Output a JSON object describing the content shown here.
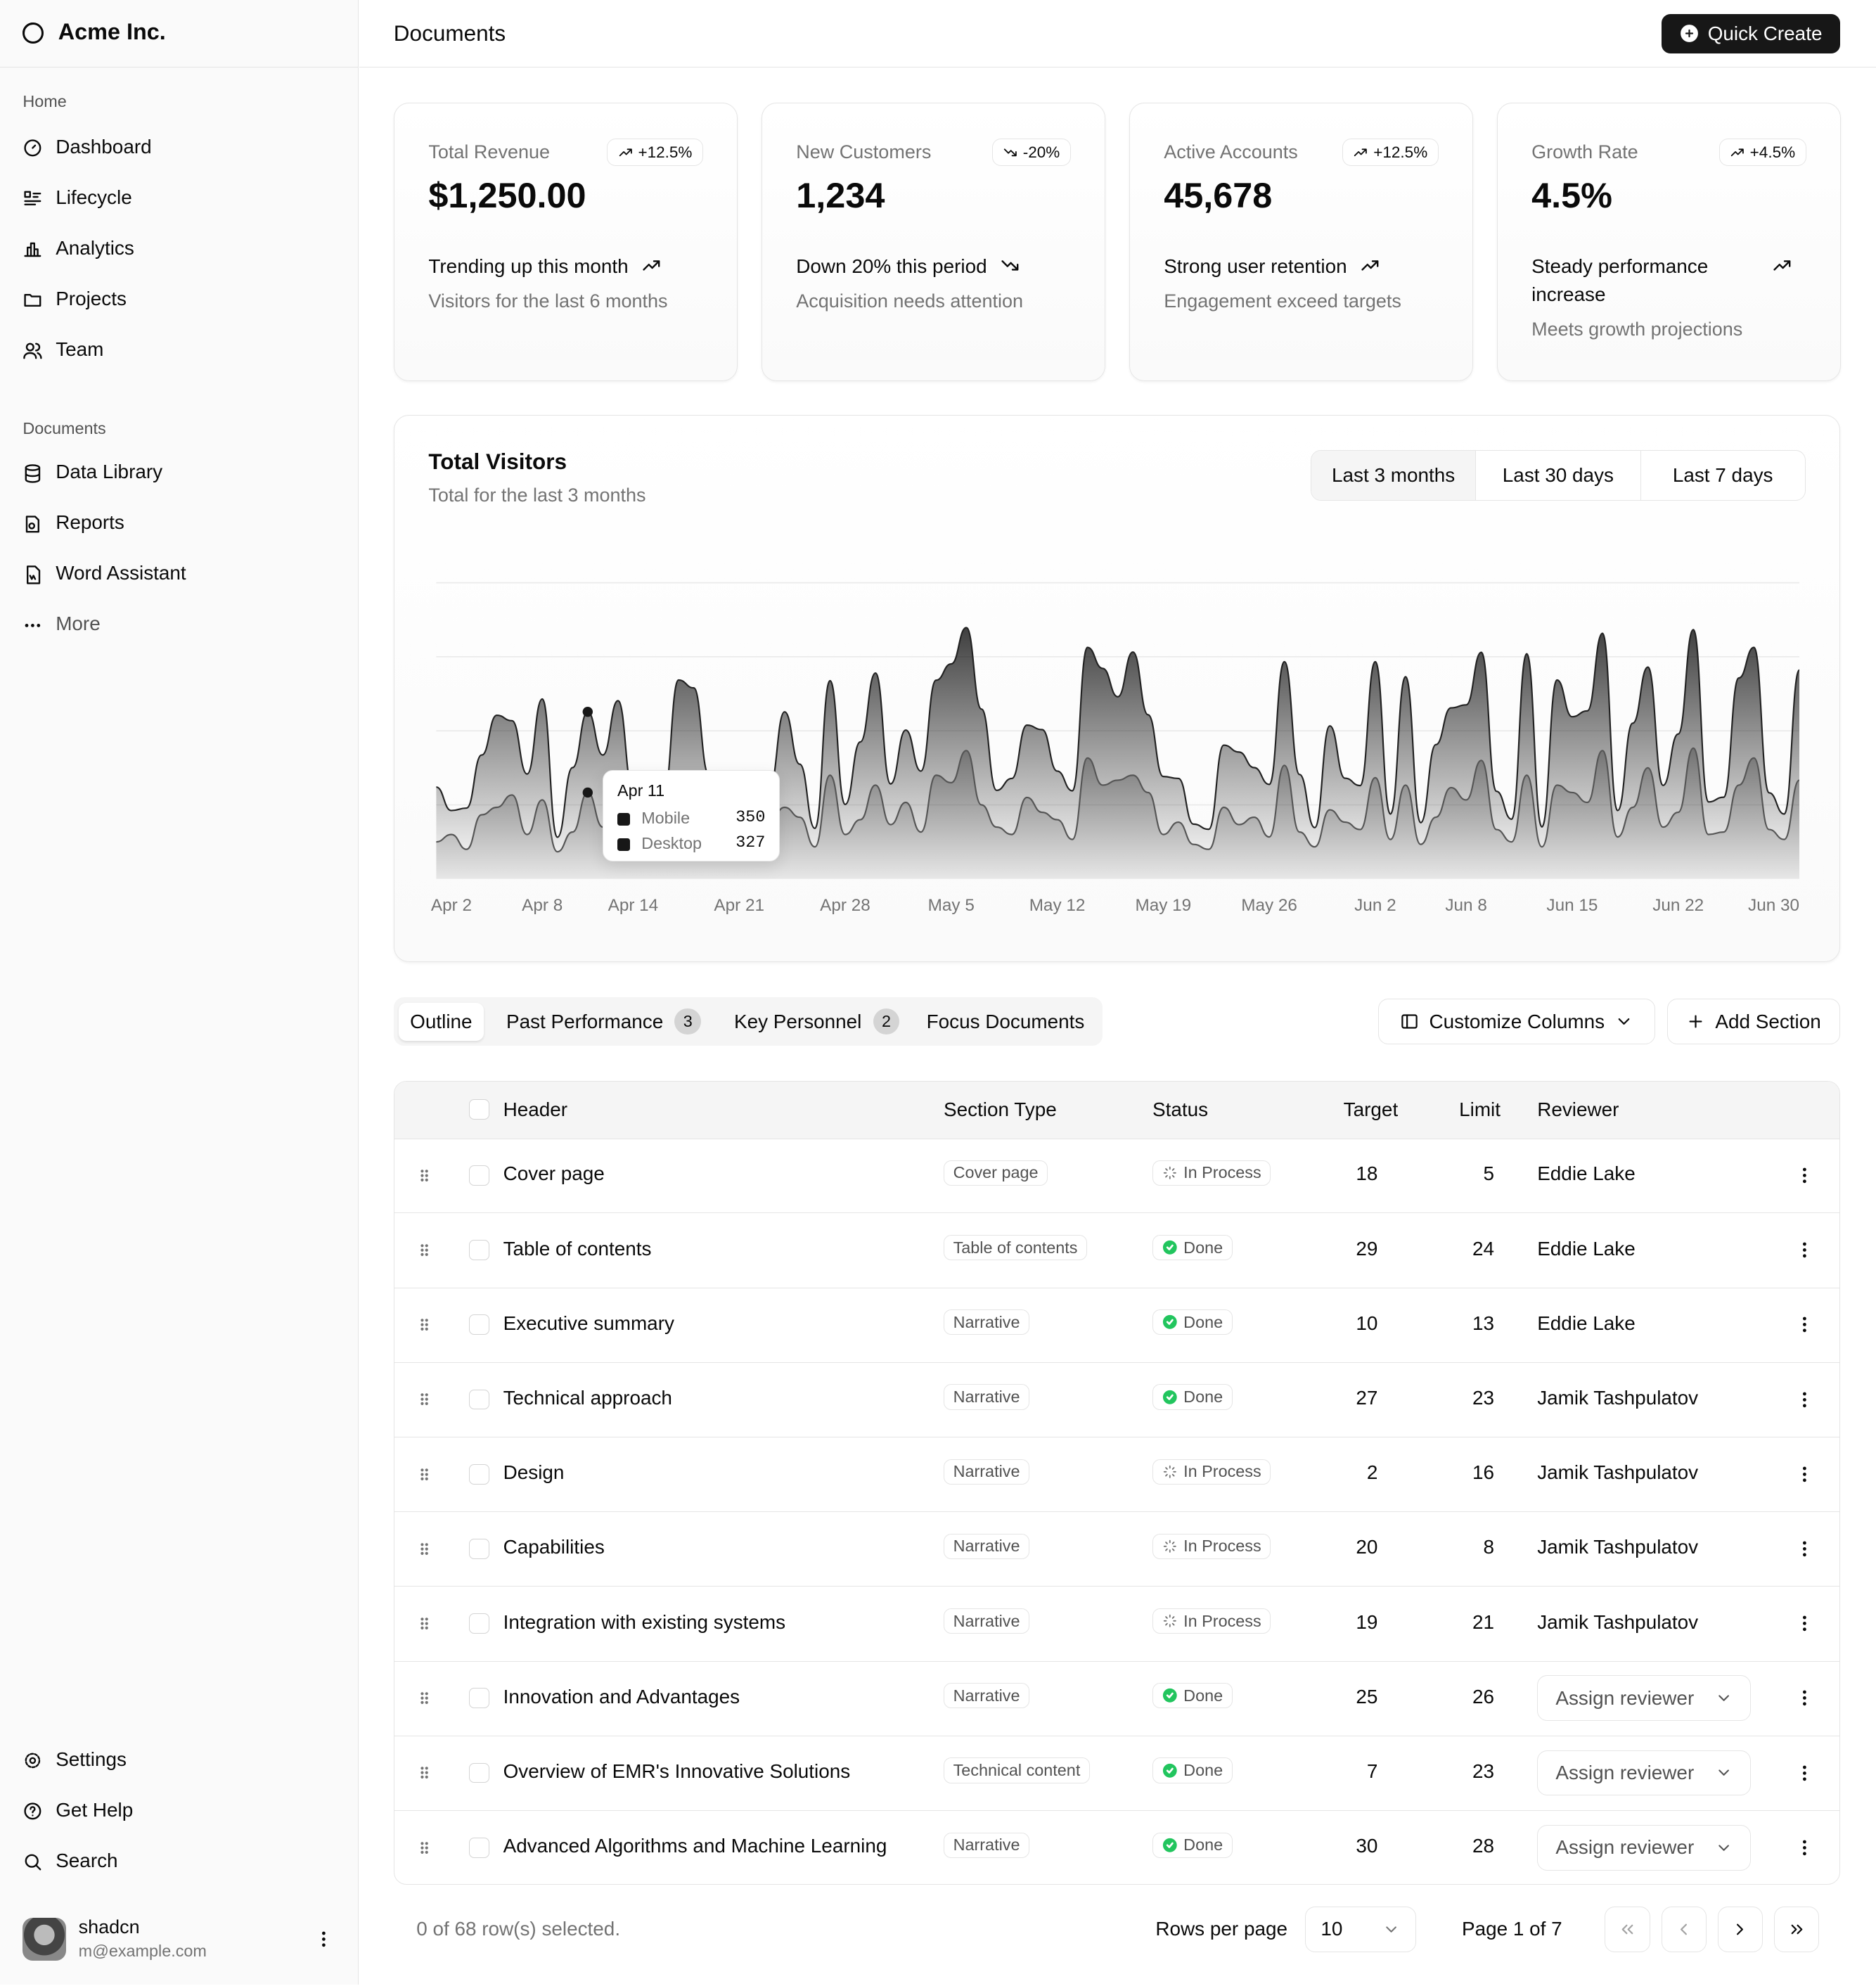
{
  "sidebar": {
    "brand": "Acme Inc.",
    "home_label": "Home",
    "home_items": [
      "Dashboard",
      "Lifecycle",
      "Analytics",
      "Projects",
      "Team"
    ],
    "documents_label": "Documents",
    "documents_items": [
      "Data Library",
      "Reports",
      "Word Assistant",
      "More"
    ],
    "bottom_items": [
      "Settings",
      "Get Help",
      "Search"
    ],
    "user": {
      "name": "shadcn",
      "email": "m@example.com"
    }
  },
  "header": {
    "title": "Documents",
    "button": "Quick Create"
  },
  "cards": [
    {
      "label": "Total Revenue",
      "badge": "+12.5%",
      "value": "$1,250.00",
      "trend": "Trending up this month",
      "note": "Visitors for the last 6 months"
    },
    {
      "label": "New Customers",
      "badge": "-20%",
      "value": "1,234",
      "trend": "Down 20% this period",
      "note": "Acquisition needs attention"
    },
    {
      "label": "Active Accounts",
      "badge": "+12.5%",
      "value": "45,678",
      "trend": "Strong user retention",
      "note": "Engagement exceed targets"
    },
    {
      "label": "Growth Rate",
      "badge": "+4.5%",
      "value": "4.5%",
      "trend": "Steady performance increase",
      "note": "Meets growth projections"
    }
  ],
  "chart_data": {
    "type": "area",
    "title": "Total Visitors",
    "subtitle": "Total for the last 3 months",
    "ranges": [
      "Last 3 months",
      "Last 30 days",
      "Last 7 days"
    ],
    "categories": [
      null,
      "Apr 2",
      null,
      null,
      null,
      null,
      null,
      "Apr 8",
      null,
      null,
      null,
      null,
      null,
      "Apr 14",
      null,
      null,
      null,
      null,
      null,
      null,
      "Apr 21",
      null,
      null,
      null,
      null,
      null,
      null,
      "Apr 28",
      null,
      null,
      null,
      null,
      null,
      null,
      "May 5",
      null,
      null,
      null,
      null,
      null,
      null,
      "May 12",
      null,
      null,
      null,
      null,
      null,
      null,
      "May 19",
      null,
      null,
      null,
      null,
      null,
      null,
      "May 26",
      null,
      null,
      null,
      null,
      null,
      null,
      "Jun 2",
      null,
      null,
      null,
      null,
      null,
      "Jun 8",
      null,
      null,
      null,
      null,
      null,
      null,
      "Jun 15",
      null,
      null,
      null,
      null,
      null,
      null,
      "Jun 22",
      null,
      null,
      null,
      null,
      null,
      null,
      null,
      "Jun 30"
    ],
    "series": [
      {
        "name": "Mobile",
        "color": "#555555",
        "values": [
          150,
          180,
          120,
          260,
          290,
          340,
          180,
          320,
          110,
          190,
          350,
          210,
          380,
          220,
          170,
          190,
          360,
          410,
          180,
          150,
          200,
          170,
          230,
          290,
          250,
          130,
          420,
          180,
          240,
          380,
          220,
          310,
          190,
          420,
          390,
          520,
          300,
          210,
          180,
          330,
          270,
          240,
          160,
          490,
          380,
          400,
          420,
          350,
          180,
          230,
          140,
          120,
          290,
          220,
          250,
          170,
          460,
          190,
          130,
          280,
          230,
          200,
          410,
          160,
          380,
          140,
          250,
          370,
          320,
          480,
          200,
          150,
          420,
          130,
          380,
          350,
          310,
          520,
          170,
          290,
          450,
          210,
          270,
          530,
          180,
          190,
          380,
          490,
          200,
          160,
          400
        ]
      },
      {
        "name": "Desktop",
        "color": "#222222",
        "values": [
          222,
          97,
          167,
          242,
          373,
          301,
          245,
          409,
          59,
          261,
          327,
          292,
          342,
          137,
          120,
          138,
          446,
          364,
          243,
          89,
          137,
          224,
          138,
          387,
          215,
          75,
          383,
          122,
          315,
          454,
          165,
          293,
          247,
          385,
          481,
          498,
          388,
          149,
          227,
          293,
          335,
          197,
          197,
          448,
          473,
          338,
          499,
          315,
          235,
          177,
          82,
          81,
          252,
          294,
          201,
          213,
          420,
          233,
          78,
          340,
          178,
          178,
          470,
          103,
          439,
          88,
          294,
          323,
          385,
          438,
          155,
          92,
          492,
          81,
          426,
          307,
          371,
          475,
          107,
          341,
          408,
          169,
          317,
          480,
          132,
          141,
          434,
          448,
          149,
          103,
          446
        ]
      }
    ],
    "tooltip_date": "Apr 11",
    "ylim": [
      0,
      1200
    ],
    "yticks": [
      300,
      600,
      900,
      1200
    ],
    "grid": true
  },
  "tabs": [
    {
      "label": "Outline"
    },
    {
      "label": "Past Performance",
      "count": 3
    },
    {
      "label": "Key Personnel",
      "count": 2
    },
    {
      "label": "Focus Documents"
    }
  ],
  "actions": [
    "Customize Columns",
    "Add Section"
  ],
  "table": {
    "columns": [
      "Header",
      "Section Type",
      "Status",
      "Target",
      "Limit",
      "Reviewer"
    ],
    "rows": [
      [
        "Cover page",
        "Cover page",
        "In Process",
        18,
        5,
        "Eddie Lake"
      ],
      [
        "Table of contents",
        "Table of contents",
        "Done",
        29,
        24,
        "Eddie Lake"
      ],
      [
        "Executive summary",
        "Narrative",
        "Done",
        10,
        13,
        "Eddie Lake"
      ],
      [
        "Technical approach",
        "Narrative",
        "Done",
        27,
        23,
        "Jamik Tashpulatov"
      ],
      [
        "Design",
        "Narrative",
        "In Process",
        2,
        16,
        "Jamik Tashpulatov"
      ],
      [
        "Capabilities",
        "Narrative",
        "In Process",
        20,
        8,
        "Jamik Tashpulatov"
      ],
      [
        "Integration with existing systems",
        "Narrative",
        "In Process",
        19,
        21,
        "Jamik Tashpulatov"
      ],
      [
        "Innovation and Advantages",
        "Narrative",
        "Done",
        25,
        26,
        "Assign reviewer"
      ],
      [
        "Overview of EMR's Innovative Solutions",
        "Technical content",
        "Done",
        7,
        23,
        "Assign reviewer"
      ],
      [
        "Advanced Algorithms and Machine Learning",
        "Narrative",
        "Done",
        30,
        28,
        "Assign reviewer"
      ]
    ]
  },
  "footer": {
    "selection": "0 of 68 row(s) selected.",
    "rows_per_page_label": "Rows per page",
    "rows_per_page": 10,
    "page": "Page 1 of 7"
  }
}
